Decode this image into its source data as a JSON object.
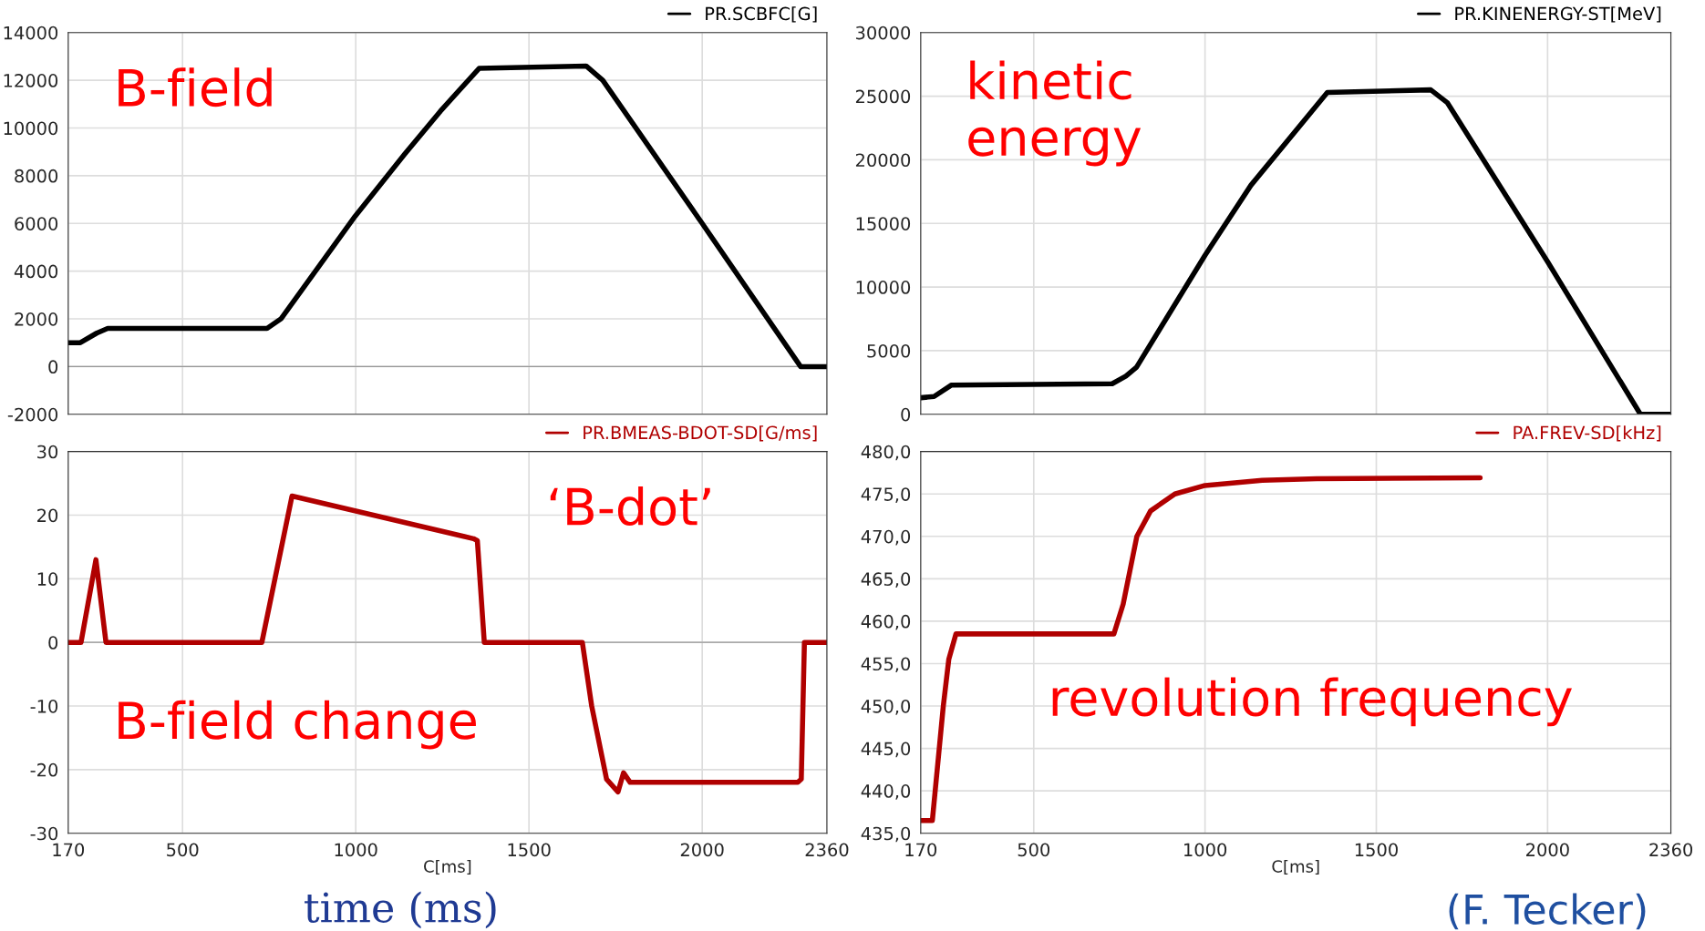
{
  "chart_data": [
    {
      "type": "line",
      "xlim": [
        170,
        2360
      ],
      "xticks": [
        170,
        500,
        1000,
        1500,
        2000,
        2360
      ],
      "ylim": [
        -2000,
        14000
      ],
      "yticks": [
        -2000,
        0,
        2000,
        4000,
        6000,
        8000,
        10000,
        12000,
        14000
      ],
      "tick_labels": "y",
      "grid": true,
      "legend": "top right",
      "annotations": [
        "B-field"
      ],
      "series": [
        {
          "name": "PR.SCBFC[G]",
          "color": "#000000",
          "x": [
            170,
            205,
            252,
            284,
            744,
            784,
            998,
            1141,
            1244,
            1356,
            1665,
            1713,
            2000,
            2284,
            2360
          ],
          "values": [
            1000,
            1000,
            1400,
            1600,
            1600,
            2000,
            6300,
            8900,
            10700,
            12500,
            12600,
            12000,
            6000,
            0,
            0
          ]
        }
      ]
    },
    {
      "type": "line",
      "xlim": [
        170,
        2360
      ],
      "xticks": [
        170,
        500,
        1000,
        1500,
        2000,
        2360
      ],
      "ylim": [
        0,
        30000
      ],
      "yticks": [
        0,
        5000,
        10000,
        15000,
        20000,
        25000,
        30000
      ],
      "tick_labels": "y",
      "grid": true,
      "legend": "top right",
      "annotations": [
        "kinetic\nenergy"
      ],
      "series": [
        {
          "name": "PR.KINENERGY-ST[MeV]",
          "color": "#000000",
          "x": [
            170,
            209,
            260,
            729,
            769,
            800,
            1000,
            1134,
            1357,
            1659,
            1707,
            2000,
            2271,
            2360
          ],
          "values": [
            1300,
            1400,
            2300,
            2400,
            3000,
            3700,
            12500,
            18000,
            25300,
            25500,
            24500,
            12000,
            0,
            0
          ]
        }
      ]
    },
    {
      "type": "line",
      "xlabel": "C[ms]",
      "xlim": [
        170,
        2360
      ],
      "xticks": [
        170,
        500,
        1000,
        1500,
        2000,
        2360
      ],
      "ylim": [
        -30,
        30
      ],
      "yticks": [
        -30,
        -20,
        -10,
        0,
        10,
        20,
        30
      ],
      "grid": true,
      "legend": "top right",
      "annotations": [
        "‘B-dot’",
        "B-field change",
        "time (ms)"
      ],
      "series": [
        {
          "name": "PR.BMEAS-BDOT-SD[G/ms]",
          "color": "#b00000",
          "x": [
            170,
            207,
            250,
            279,
            729,
            816,
            1340,
            1351,
            1371,
            1654,
            1681,
            1724,
            1757,
            1773,
            1792,
            2276,
            2286,
            2295,
            2360
          ],
          "values": [
            0,
            0,
            13,
            0,
            0,
            23,
            16.3,
            16,
            0,
            0,
            -10,
            -21.5,
            -23.5,
            -20.5,
            -22,
            -22,
            -21.5,
            0,
            0
          ]
        }
      ]
    },
    {
      "type": "line",
      "xlabel": "C[ms]",
      "xlim": [
        170,
        2360
      ],
      "xticks": [
        170,
        500,
        1000,
        1500,
        2000,
        2360
      ],
      "ylim": [
        435,
        480
      ],
      "yticks": [
        {
          "value": 435,
          "label": "435,0"
        },
        {
          "value": 440,
          "label": "440,0"
        },
        {
          "value": 445,
          "label": "445,0"
        },
        {
          "value": 450,
          "label": "450,0"
        },
        {
          "value": 455,
          "label": "455,0"
        },
        {
          "value": 460,
          "label": "460,0"
        },
        {
          "value": 465,
          "label": "465,0"
        },
        {
          "value": 470,
          "label": "470,0"
        },
        {
          "value": 475,
          "label": "475,0"
        },
        {
          "value": 480,
          "label": "480,0"
        }
      ],
      "grid": true,
      "legend": "top right",
      "annotations": [
        "revolution frequency",
        "(F. Tecker)"
      ],
      "series": [
        {
          "name": "PA.FREV-SD[kHz]",
          "color": "#b00000",
          "x": [
            170,
            204,
            236,
            252,
            273,
            734,
            761,
            801,
            841,
            912,
            1000,
            1167,
            1326,
            1803
          ],
          "values": [
            436.5,
            436.5,
            450,
            455.5,
            458.5,
            458.5,
            462,
            470,
            473,
            475,
            476,
            476.6,
            476.8,
            476.9
          ]
        }
      ]
    }
  ]
}
